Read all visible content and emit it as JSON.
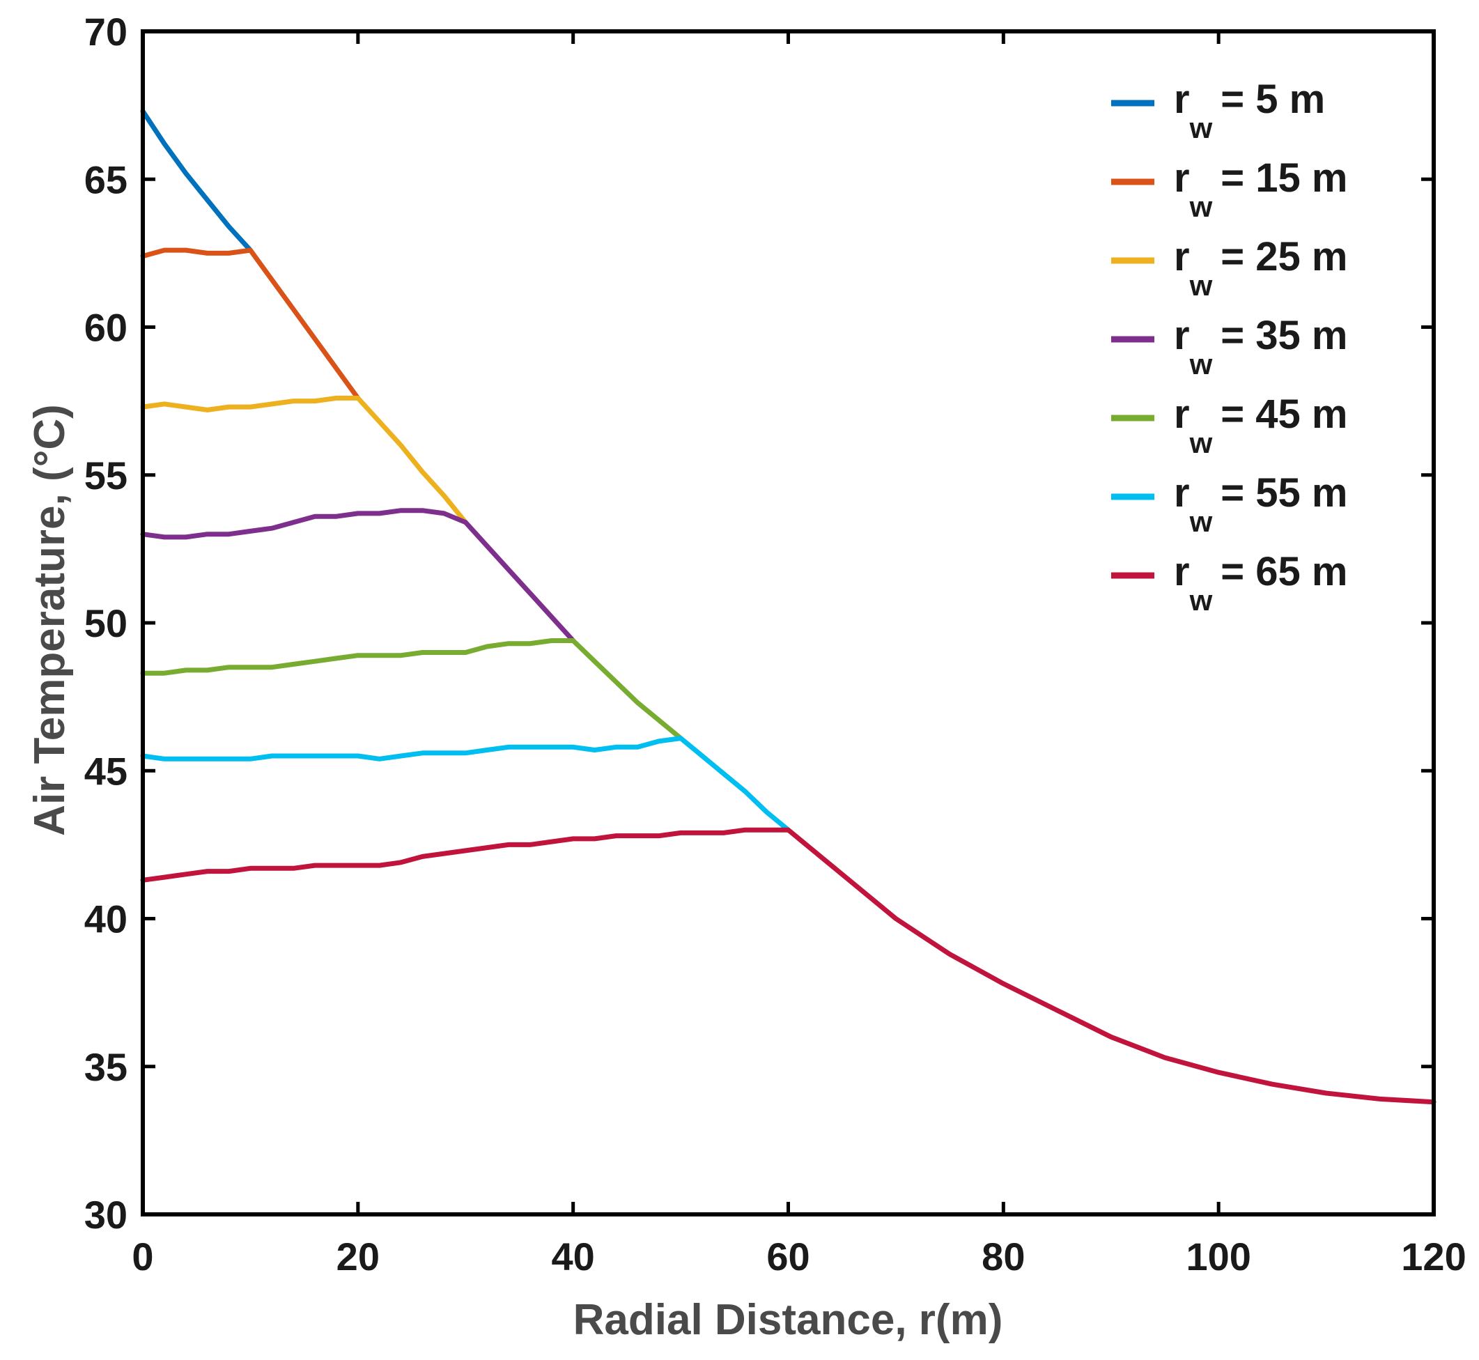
{
  "chart_data": {
    "type": "line",
    "title": "",
    "xlabel": "Radial Distance, r(m)",
    "ylabel": "Air Temperature, (°C)",
    "xlim": [
      0,
      120
    ],
    "ylim": [
      30,
      70
    ],
    "xticks": [
      0,
      20,
      40,
      60,
      80,
      100,
      120
    ],
    "yticks": [
      30,
      35,
      40,
      45,
      50,
      55,
      60,
      65,
      70
    ],
    "grid": false,
    "legend_position": "top-right",
    "legend_symbol": "r",
    "legend_subscript": "w",
    "series": [
      {
        "name": "r_w = 5 m",
        "legend_value": "= 5 m",
        "color": "#0072BD",
        "x": [
          0,
          2,
          4,
          6,
          8,
          10
        ],
        "y": [
          67.3,
          66.2,
          65.2,
          64.3,
          63.4,
          62.6
        ]
      },
      {
        "name": "r_w = 15 m",
        "legend_value": "= 15 m",
        "color": "#D95319",
        "x": [
          0,
          2,
          4,
          6,
          8,
          10,
          12,
          14,
          16,
          18,
          20
        ],
        "y": [
          62.4,
          62.6,
          62.6,
          62.5,
          62.5,
          62.6,
          61.6,
          60.6,
          59.6,
          58.6,
          57.6
        ]
      },
      {
        "name": "r_w = 25 m",
        "legend_value": "= 25 m",
        "color": "#EDB120",
        "x": [
          0,
          2,
          4,
          6,
          8,
          10,
          12,
          14,
          16,
          18,
          20,
          22,
          24,
          26,
          28,
          30
        ],
        "y": [
          57.3,
          57.4,
          57.3,
          57.2,
          57.3,
          57.3,
          57.4,
          57.5,
          57.5,
          57.6,
          57.6,
          56.8,
          56.0,
          55.1,
          54.3,
          53.4
        ]
      },
      {
        "name": "r_w = 35 m",
        "legend_value": "= 35 m",
        "color": "#7E2F8E",
        "x": [
          0,
          2,
          4,
          6,
          8,
          10,
          12,
          14,
          16,
          18,
          20,
          22,
          24,
          26,
          28,
          30,
          32,
          34,
          36,
          38,
          40
        ],
        "y": [
          53.0,
          52.9,
          52.9,
          53.0,
          53.0,
          53.1,
          53.2,
          53.4,
          53.6,
          53.6,
          53.7,
          53.7,
          53.8,
          53.8,
          53.7,
          53.4,
          52.6,
          51.8,
          51.0,
          50.2,
          49.4
        ]
      },
      {
        "name": "r_w = 45 m",
        "legend_value": "= 45 m",
        "color": "#77AC30",
        "x": [
          0,
          2,
          4,
          6,
          8,
          10,
          12,
          14,
          16,
          18,
          20,
          22,
          24,
          26,
          28,
          30,
          32,
          34,
          36,
          38,
          40,
          42,
          44,
          46,
          48,
          50
        ],
        "y": [
          48.3,
          48.3,
          48.4,
          48.4,
          48.5,
          48.5,
          48.5,
          48.6,
          48.7,
          48.8,
          48.9,
          48.9,
          48.9,
          49.0,
          49.0,
          49.0,
          49.2,
          49.3,
          49.3,
          49.4,
          49.4,
          48.7,
          48.0,
          47.3,
          46.7,
          46.1
        ]
      },
      {
        "name": "r_w = 55 m",
        "legend_value": "= 55 m",
        "color": "#00BFF0",
        "x": [
          0,
          2,
          4,
          6,
          8,
          10,
          12,
          14,
          16,
          18,
          20,
          22,
          24,
          26,
          28,
          30,
          32,
          34,
          36,
          38,
          40,
          42,
          44,
          46,
          48,
          50,
          52,
          54,
          56,
          58,
          60
        ],
        "y": [
          45.5,
          45.4,
          45.4,
          45.4,
          45.4,
          45.4,
          45.5,
          45.5,
          45.5,
          45.5,
          45.5,
          45.4,
          45.5,
          45.6,
          45.6,
          45.6,
          45.7,
          45.8,
          45.8,
          45.8,
          45.8,
          45.7,
          45.8,
          45.8,
          46.0,
          46.1,
          45.5,
          44.9,
          44.3,
          43.6,
          43.0
        ]
      },
      {
        "name": "r_w = 65 m",
        "legend_value": "= 65 m",
        "color": "#C0143C",
        "x": [
          0,
          2,
          4,
          6,
          8,
          10,
          12,
          14,
          16,
          18,
          20,
          22,
          24,
          26,
          28,
          30,
          32,
          34,
          36,
          38,
          40,
          42,
          44,
          46,
          48,
          50,
          52,
          54,
          56,
          58,
          60,
          65,
          70,
          75,
          80,
          85,
          90,
          95,
          100,
          105,
          110,
          115,
          120
        ],
        "y": [
          41.3,
          41.4,
          41.5,
          41.6,
          41.6,
          41.7,
          41.7,
          41.7,
          41.8,
          41.8,
          41.8,
          41.8,
          41.9,
          42.1,
          42.2,
          42.3,
          42.4,
          42.5,
          42.5,
          42.6,
          42.7,
          42.7,
          42.8,
          42.8,
          42.8,
          42.9,
          42.9,
          42.9,
          43.0,
          43.0,
          43.0,
          41.5,
          40.0,
          38.8,
          37.8,
          36.9,
          36.0,
          35.3,
          34.8,
          34.4,
          34.1,
          33.9,
          33.8
        ]
      }
    ]
  }
}
